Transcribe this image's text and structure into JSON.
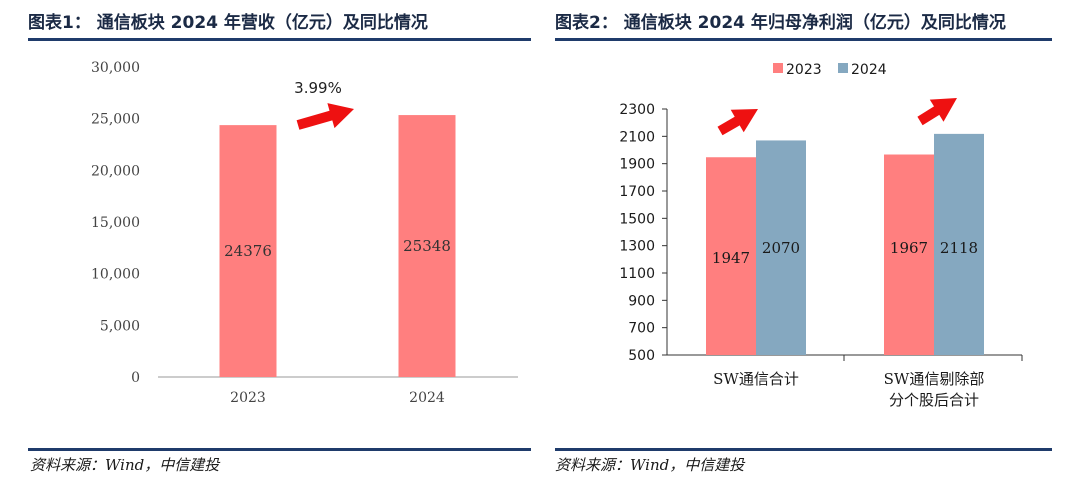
{
  "left": {
    "title": "图表1：  通信板块 2024 年营收（亿元）及同比情况",
    "source": "资料来源：Wind，中信建投",
    "growth_label": "3.99%"
  },
  "right": {
    "title": "图表2：  通信板块 2024 年归母净利润（亿元）及同比情况",
    "source": "资料来源：Wind，中信建投"
  },
  "colors": {
    "bar_2023": "#ff7f7f",
    "bar_2024": "#85a8c0",
    "arrow": "#ee1111",
    "rule": "#1f3b6b"
  },
  "chart_data": [
    {
      "type": "bar",
      "title": "通信板块 2024 年营收（亿元）及同比情况",
      "categories": [
        "2023",
        "2024"
      ],
      "values": [
        24376,
        25348
      ],
      "data_labels": [
        "24376",
        "25348"
      ],
      "ylim": [
        0,
        30000
      ],
      "yticks": [
        0,
        5000,
        10000,
        15000,
        20000,
        25000,
        30000
      ],
      "ytick_labels": [
        "0",
        "5,000",
        "10,000",
        "15,000",
        "20,000",
        "25,000",
        "30,000"
      ],
      "annotation": "3.99%",
      "grid": false,
      "legend": "none"
    },
    {
      "type": "bar",
      "title": "通信板块 2024 年归母净利润（亿元）及同比情况",
      "categories": [
        "SW通信合计",
        "SW通信剔除部分个股后合计"
      ],
      "category_lines": [
        [
          "SW通信合计"
        ],
        [
          "SW通信剔除部",
          "分个股后合计"
        ]
      ],
      "series": [
        {
          "name": "2023",
          "values": [
            1947,
            1967
          ]
        },
        {
          "name": "2024",
          "values": [
            2070,
            2118
          ]
        }
      ],
      "ylim": [
        500,
        2300
      ],
      "yticks": [
        500,
        700,
        900,
        1100,
        1300,
        1500,
        1700,
        1900,
        2100,
        2300
      ],
      "ytick_labels": [
        "500",
        "700",
        "900",
        "1100",
        "1300",
        "1500",
        "1700",
        "1900",
        "2100",
        "2300"
      ],
      "grid": false,
      "legend": "top"
    }
  ]
}
